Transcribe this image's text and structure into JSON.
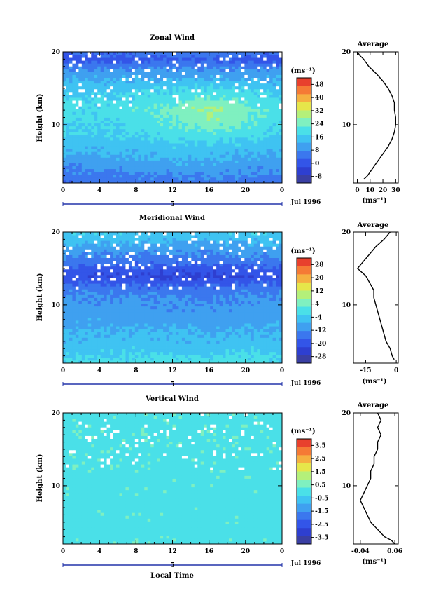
{
  "colors": [
    "#3a3fa3",
    "#2e3fd0",
    "#3355e8",
    "#3b77ee",
    "#3fa0f0",
    "#3fc3f2",
    "#4ae0e8",
    "#7ff0c0",
    "#b4f07a",
    "#e6e64a",
    "#f5b040",
    "#f57a35",
    "#e8402d"
  ],
  "chart_data": [
    {
      "type": "heatmap",
      "title": "Zonal Wind",
      "ylabel": "Height (km)",
      "xlabel": "",
      "x_ticks": [
        "0",
        "4",
        "8",
        "12",
        "16",
        "20",
        "0"
      ],
      "y_ticks": [
        "10",
        "20"
      ],
      "xlim": [
        0,
        24
      ],
      "ylim": [
        2,
        20
      ],
      "date_axis": {
        "day_label": "5",
        "month_label": "Jul 1996"
      },
      "unit": "(ms⁻¹)",
      "colorbar": {
        "ticks": [
          "-8",
          "0",
          "8",
          "16",
          "24",
          "32",
          "40",
          "48"
        ],
        "range": [
          -12,
          52
        ]
      },
      "field": {
        "heights": [
          2,
          3,
          4,
          5,
          6,
          7,
          8,
          9,
          10,
          11,
          12,
          13,
          14,
          15,
          16,
          17,
          18,
          19,
          20
        ],
        "times": [
          0,
          4,
          8,
          12,
          16,
          20,
          24
        ],
        "values": [
          [
            4,
            4,
            5,
            5,
            6,
            5,
            4
          ],
          [
            6,
            6,
            7,
            7,
            8,
            7,
            6
          ],
          [
            8,
            8,
            9,
            10,
            10,
            9,
            8
          ],
          [
            10,
            10,
            11,
            12,
            12,
            11,
            10
          ],
          [
            12,
            12,
            13,
            14,
            14,
            13,
            12
          ],
          [
            14,
            14,
            15,
            16,
            16,
            15,
            14
          ],
          [
            16,
            16,
            17,
            18,
            19,
            18,
            16
          ],
          [
            17,
            17,
            18,
            20,
            22,
            20,
            17
          ],
          [
            18,
            18,
            19,
            22,
            25,
            22,
            18
          ],
          [
            19,
            19,
            20,
            23,
            27,
            23,
            19
          ],
          [
            19,
            19,
            21,
            24,
            28,
            24,
            19
          ],
          [
            18,
            18,
            20,
            22,
            26,
            22,
            18
          ],
          [
            17,
            17,
            18,
            20,
            22,
            20,
            17
          ],
          [
            15,
            15,
            16,
            17,
            18,
            17,
            15
          ],
          [
            13,
            13,
            13,
            14,
            14,
            13,
            13
          ],
          [
            10,
            10,
            10,
            11,
            11,
            10,
            10
          ],
          [
            6,
            6,
            6,
            7,
            7,
            6,
            6
          ],
          [
            0,
            0,
            1,
            2,
            2,
            1,
            0
          ],
          [
            4,
            4,
            5,
            6,
            6,
            5,
            4
          ]
        ]
      },
      "profile": {
        "title": "Average",
        "x_ticks": [
          "0",
          "10",
          "20",
          "30"
        ],
        "xlim": [
          -3,
          32
        ],
        "y_ticks": [
          "10",
          "20"
        ],
        "xlabel": "(ms⁻¹)",
        "heights": [
          2.5,
          3,
          4,
          5,
          6,
          7,
          8,
          9,
          10,
          11,
          12,
          13,
          14,
          15,
          16,
          17,
          18,
          19,
          19.5,
          20
        ],
        "values": [
          5,
          8,
          12,
          16,
          20,
          24,
          27,
          29,
          30,
          30,
          29,
          29,
          27,
          24,
          20,
          15,
          9,
          5,
          2,
          0
        ]
      }
    },
    {
      "type": "heatmap",
      "title": "Meridional Wind",
      "ylabel": "Height (km)",
      "xlabel": "",
      "x_ticks": [
        "0",
        "4",
        "8",
        "12",
        "16",
        "20",
        "0"
      ],
      "y_ticks": [
        "10",
        "20"
      ],
      "xlim": [
        0,
        24
      ],
      "ylim": [
        2,
        20
      ],
      "date_axis": {
        "day_label": "5",
        "month_label": "Jul 1996"
      },
      "unit": "(ms⁻¹)",
      "colorbar": {
        "ticks": [
          "-28",
          "-20",
          "-12",
          "-4",
          "4",
          "12",
          "20",
          "28"
        ],
        "range": [
          -32,
          32
        ]
      },
      "field": {
        "heights": [
          2,
          3,
          4,
          5,
          6,
          7,
          8,
          9,
          10,
          11,
          12,
          13,
          14,
          15,
          16,
          17,
          18,
          19,
          20
        ],
        "times": [
          0,
          4,
          8,
          12,
          16,
          20,
          24
        ],
        "values": [
          [
            -1,
            -1,
            0,
            0,
            0,
            1,
            -1
          ],
          [
            -3,
            -3,
            -2,
            -2,
            -3,
            -2,
            -3
          ],
          [
            -4,
            -4,
            -4,
            -5,
            -5,
            -4,
            -4
          ],
          [
            -6,
            -6,
            -5,
            -6,
            -6,
            -5,
            -6
          ],
          [
            -7,
            -7,
            -7,
            -7,
            -8,
            -7,
            -7
          ],
          [
            -8,
            -8,
            -8,
            -8,
            -9,
            -8,
            -8
          ],
          [
            -9,
            -9,
            -9,
            -10,
            -10,
            -9,
            -9
          ],
          [
            -10,
            -10,
            -10,
            -11,
            -11,
            -10,
            -10
          ],
          [
            -10,
            -11,
            -11,
            -11,
            -12,
            -11,
            -10
          ],
          [
            -11,
            -12,
            -12,
            -12,
            -13,
            -12,
            -11
          ],
          [
            -13,
            -14,
            -14,
            -15,
            -15,
            -14,
            -13
          ],
          [
            -17,
            -18,
            -18,
            -19,
            -19,
            -18,
            -17
          ],
          [
            -21,
            -22,
            -22,
            -23,
            -23,
            -22,
            -21
          ],
          [
            -18,
            -19,
            -19,
            -20,
            -20,
            -19,
            -18
          ],
          [
            -14,
            -15,
            -15,
            -16,
            -16,
            -15,
            -14
          ],
          [
            -11,
            -12,
            -12,
            -12,
            -13,
            -12,
            -11
          ],
          [
            -8,
            -9,
            -9,
            -9,
            -10,
            -9,
            -8
          ],
          [
            -6,
            -6,
            -6,
            -7,
            -7,
            -6,
            -6
          ],
          [
            -3,
            -3,
            -3,
            -4,
            -4,
            -3,
            -3
          ]
        ]
      },
      "profile": {
        "title": "Average",
        "x_ticks": [
          "-15",
          "0"
        ],
        "xlim": [
          -21,
          1
        ],
        "y_ticks": [
          "10",
          "20"
        ],
        "xlabel": "(ms⁻¹)",
        "heights": [
          2.5,
          3,
          4,
          5,
          6,
          7,
          8,
          9,
          10,
          11,
          12,
          13,
          14,
          15,
          16,
          17,
          18,
          19,
          20
        ],
        "values": [
          -1,
          -2,
          -3,
          -5,
          -6,
          -7,
          -8,
          -9,
          -10,
          -11,
          -11,
          -13,
          -15,
          -19,
          -16,
          -13,
          -10,
          -6,
          -3
        ]
      }
    },
    {
      "type": "heatmap",
      "title": "Vertical Wind",
      "ylabel": "Height (km)",
      "xlabel": "Local Time",
      "x_ticks": [
        "0",
        "4",
        "8",
        "12",
        "16",
        "20",
        "0"
      ],
      "y_ticks": [
        "10",
        "20"
      ],
      "xlim": [
        0,
        24
      ],
      "ylim": [
        2,
        20
      ],
      "date_axis": {
        "day_label": "5",
        "month_label": "Jul 1996"
      },
      "unit": "(ms⁻¹)",
      "colorbar": {
        "ticks": [
          "-3.5",
          "-2.5",
          "-1.5",
          "-0.5",
          "0.5",
          "1.5",
          "2.5",
          "3.5"
        ],
        "range": [
          -4,
          4
        ]
      },
      "field": {
        "heights": [
          2,
          3,
          4,
          5,
          6,
          7,
          8,
          9,
          10,
          11,
          12,
          13,
          14,
          15,
          16,
          17,
          18,
          19,
          20
        ],
        "times": [
          0,
          4,
          8,
          12,
          16,
          20,
          24
        ],
        "values": [
          [
            0.1,
            0.1,
            0.2,
            0.1,
            0.1,
            0.2,
            0.1
          ],
          [
            0.1,
            0.0,
            0.1,
            0.1,
            0.0,
            0.1,
            0.1
          ],
          [
            0.0,
            0.1,
            0.0,
            0.1,
            0.1,
            0.0,
            0.0
          ],
          [
            0.1,
            0.0,
            0.1,
            0.0,
            0.1,
            0.1,
            0.1
          ],
          [
            0.0,
            0.1,
            0.1,
            0.1,
            0.0,
            0.1,
            0.0
          ],
          [
            0.1,
            0.1,
            0.0,
            0.1,
            0.1,
            0.0,
            0.1
          ],
          [
            0.0,
            0.0,
            0.1,
            0.0,
            0.1,
            0.1,
            0.0
          ],
          [
            0.1,
            0.1,
            0.1,
            0.1,
            0.0,
            0.1,
            0.1
          ],
          [
            0.1,
            0.0,
            0.1,
            0.1,
            0.1,
            0.0,
            0.1
          ],
          [
            0.0,
            0.1,
            0.0,
            0.1,
            0.1,
            0.1,
            0.0
          ],
          [
            0.1,
            0.1,
            0.1,
            0.0,
            0.1,
            0.1,
            0.1
          ],
          [
            0.1,
            0.1,
            0.1,
            0.1,
            0.1,
            0.1,
            0.1
          ],
          [
            0.1,
            0.1,
            0.1,
            0.1,
            0.1,
            0.1,
            0.1
          ],
          [
            0.1,
            0.1,
            0.1,
            0.1,
            0.1,
            0.1,
            0.1
          ],
          [
            0.1,
            0.1,
            0.1,
            0.1,
            0.1,
            0.1,
            0.1
          ],
          [
            0.1,
            0.1,
            0.1,
            0.1,
            0.1,
            0.1,
            0.1
          ],
          [
            0.1,
            0.1,
            0.1,
            0.1,
            0.1,
            0.1,
            0.1
          ],
          [
            0.1,
            0.1,
            0.1,
            0.1,
            0.1,
            0.1,
            0.1
          ],
          [
            0.1,
            0.1,
            0.1,
            0.1,
            0.1,
            0.1,
            0.1
          ]
        ]
      },
      "profile": {
        "title": "Average",
        "x_ticks": [
          "-0.04",
          "0.06"
        ],
        "xlim": [
          -0.06,
          0.07
        ],
        "y_ticks": [
          "10",
          "20"
        ],
        "xlabel": "(ms⁻¹)",
        "heights": [
          2,
          2.5,
          3,
          4,
          5,
          6,
          7,
          8,
          9,
          10,
          11,
          12,
          13,
          14,
          15,
          16,
          17,
          18,
          19,
          20
        ],
        "values": [
          0.06,
          0.05,
          0.03,
          0.01,
          -0.01,
          -0.02,
          -0.03,
          -0.04,
          -0.03,
          -0.02,
          -0.01,
          -0.01,
          0.0,
          0.0,
          0.01,
          0.01,
          0.02,
          0.01,
          0.02,
          0.01
        ]
      }
    }
  ]
}
